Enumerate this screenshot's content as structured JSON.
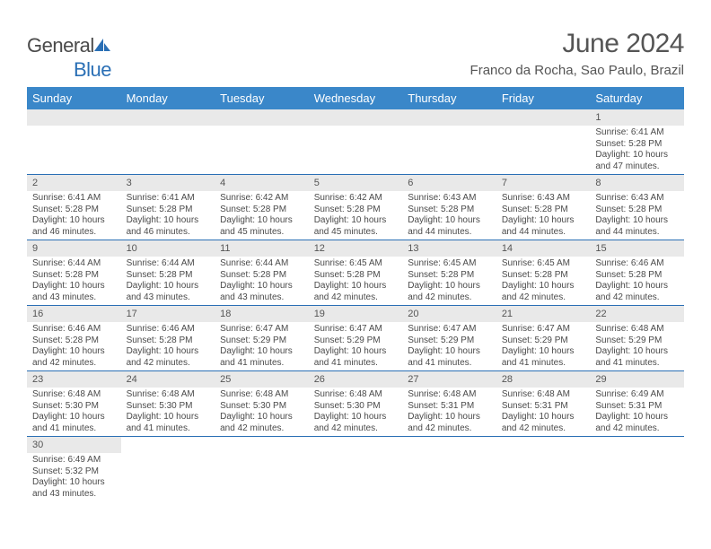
{
  "brand": {
    "general": "General",
    "blue": "Blue"
  },
  "title": {
    "month": "June 2024",
    "location": "Franco da Rocha, Sao Paulo, Brazil"
  },
  "colors": {
    "header_bg": "#3a87c9",
    "rule": "#2a6fb5",
    "daynum_bg": "#e9e9e9",
    "text": "#4a4a4a"
  },
  "day_headers": [
    "Sunday",
    "Monday",
    "Tuesday",
    "Wednesday",
    "Thursday",
    "Friday",
    "Saturday"
  ],
  "weeks": [
    [
      null,
      null,
      null,
      null,
      null,
      null,
      {
        "n": "1",
        "sunrise": "6:41 AM",
        "sunset": "5:28 PM",
        "daylight": "10 hours and 47 minutes."
      }
    ],
    [
      {
        "n": "2",
        "sunrise": "6:41 AM",
        "sunset": "5:28 PM",
        "daylight": "10 hours and 46 minutes."
      },
      {
        "n": "3",
        "sunrise": "6:41 AM",
        "sunset": "5:28 PM",
        "daylight": "10 hours and 46 minutes."
      },
      {
        "n": "4",
        "sunrise": "6:42 AM",
        "sunset": "5:28 PM",
        "daylight": "10 hours and 45 minutes."
      },
      {
        "n": "5",
        "sunrise": "6:42 AM",
        "sunset": "5:28 PM",
        "daylight": "10 hours and 45 minutes."
      },
      {
        "n": "6",
        "sunrise": "6:43 AM",
        "sunset": "5:28 PM",
        "daylight": "10 hours and 44 minutes."
      },
      {
        "n": "7",
        "sunrise": "6:43 AM",
        "sunset": "5:28 PM",
        "daylight": "10 hours and 44 minutes."
      },
      {
        "n": "8",
        "sunrise": "6:43 AM",
        "sunset": "5:28 PM",
        "daylight": "10 hours and 44 minutes."
      }
    ],
    [
      {
        "n": "9",
        "sunrise": "6:44 AM",
        "sunset": "5:28 PM",
        "daylight": "10 hours and 43 minutes."
      },
      {
        "n": "10",
        "sunrise": "6:44 AM",
        "sunset": "5:28 PM",
        "daylight": "10 hours and 43 minutes."
      },
      {
        "n": "11",
        "sunrise": "6:44 AM",
        "sunset": "5:28 PM",
        "daylight": "10 hours and 43 minutes."
      },
      {
        "n": "12",
        "sunrise": "6:45 AM",
        "sunset": "5:28 PM",
        "daylight": "10 hours and 42 minutes."
      },
      {
        "n": "13",
        "sunrise": "6:45 AM",
        "sunset": "5:28 PM",
        "daylight": "10 hours and 42 minutes."
      },
      {
        "n": "14",
        "sunrise": "6:45 AM",
        "sunset": "5:28 PM",
        "daylight": "10 hours and 42 minutes."
      },
      {
        "n": "15",
        "sunrise": "6:46 AM",
        "sunset": "5:28 PM",
        "daylight": "10 hours and 42 minutes."
      }
    ],
    [
      {
        "n": "16",
        "sunrise": "6:46 AM",
        "sunset": "5:28 PM",
        "daylight": "10 hours and 42 minutes."
      },
      {
        "n": "17",
        "sunrise": "6:46 AM",
        "sunset": "5:28 PM",
        "daylight": "10 hours and 42 minutes."
      },
      {
        "n": "18",
        "sunrise": "6:47 AM",
        "sunset": "5:29 PM",
        "daylight": "10 hours and 41 minutes."
      },
      {
        "n": "19",
        "sunrise": "6:47 AM",
        "sunset": "5:29 PM",
        "daylight": "10 hours and 41 minutes."
      },
      {
        "n": "20",
        "sunrise": "6:47 AM",
        "sunset": "5:29 PM",
        "daylight": "10 hours and 41 minutes."
      },
      {
        "n": "21",
        "sunrise": "6:47 AM",
        "sunset": "5:29 PM",
        "daylight": "10 hours and 41 minutes."
      },
      {
        "n": "22",
        "sunrise": "6:48 AM",
        "sunset": "5:29 PM",
        "daylight": "10 hours and 41 minutes."
      }
    ],
    [
      {
        "n": "23",
        "sunrise": "6:48 AM",
        "sunset": "5:30 PM",
        "daylight": "10 hours and 41 minutes."
      },
      {
        "n": "24",
        "sunrise": "6:48 AM",
        "sunset": "5:30 PM",
        "daylight": "10 hours and 41 minutes."
      },
      {
        "n": "25",
        "sunrise": "6:48 AM",
        "sunset": "5:30 PM",
        "daylight": "10 hours and 42 minutes."
      },
      {
        "n": "26",
        "sunrise": "6:48 AM",
        "sunset": "5:30 PM",
        "daylight": "10 hours and 42 minutes."
      },
      {
        "n": "27",
        "sunrise": "6:48 AM",
        "sunset": "5:31 PM",
        "daylight": "10 hours and 42 minutes."
      },
      {
        "n": "28",
        "sunrise": "6:48 AM",
        "sunset": "5:31 PM",
        "daylight": "10 hours and 42 minutes."
      },
      {
        "n": "29",
        "sunrise": "6:49 AM",
        "sunset": "5:31 PM",
        "daylight": "10 hours and 42 minutes."
      }
    ],
    [
      {
        "n": "30",
        "sunrise": "6:49 AM",
        "sunset": "5:32 PM",
        "daylight": "10 hours and 43 minutes."
      },
      null,
      null,
      null,
      null,
      null,
      null
    ]
  ],
  "labels": {
    "sunrise": "Sunrise: ",
    "sunset": "Sunset: ",
    "daylight": "Daylight: "
  }
}
